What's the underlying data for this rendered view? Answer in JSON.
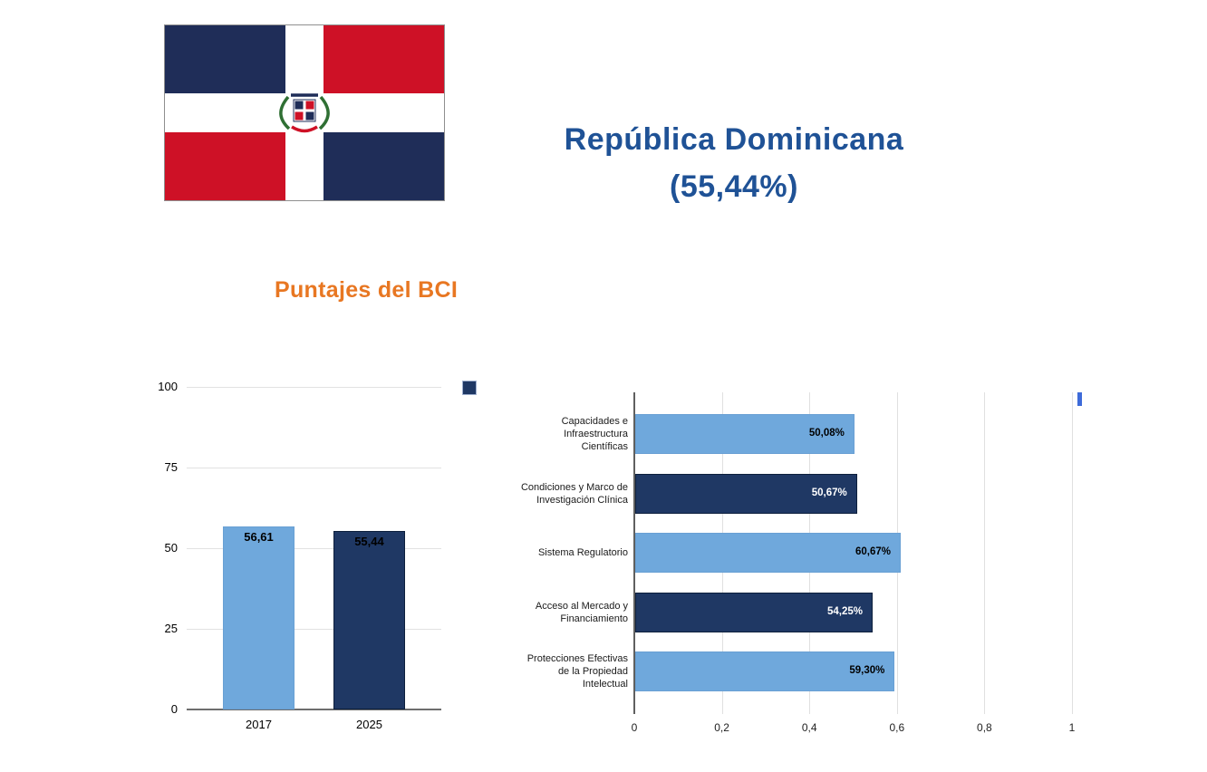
{
  "header": {
    "title_line1": "República Dominicana",
    "title_line2": "(55,44%)",
    "subtitle": "Puntajes del BCI"
  },
  "colors": {
    "title_blue": "#1F5296",
    "subtitle_orange": "#E87722",
    "bar_light_blue": "#6FA8DC",
    "bar_dark_navy": "#1F3864",
    "legend_blue": "#3E6BD9",
    "flag_navy": "#1F2D58",
    "flag_red": "#CE1126"
  },
  "chart_data": [
    {
      "type": "bar",
      "orientation": "vertical",
      "title": "",
      "categories": [
        "2017",
        "2025"
      ],
      "values": [
        56.61,
        55.44
      ],
      "value_labels": [
        "56,61",
        "55,44"
      ],
      "bar_colors": [
        "#6FA8DC",
        "#1F3864"
      ],
      "ylim": [
        0,
        100
      ],
      "ytick_values": [
        100,
        75,
        50,
        25,
        0
      ],
      "yticks": [
        "100",
        "75",
        "50",
        "25",
        "0"
      ],
      "xlabel": "",
      "ylabel": "",
      "grid": true,
      "legend": {
        "position": "top-right",
        "label": "",
        "marker_color": "#1F3864"
      }
    },
    {
      "type": "bar",
      "orientation": "horizontal",
      "title": "",
      "categories": [
        "Capacidades e Infraestructura Científicas",
        "Condiciones y Marco de Investigación Clínica",
        "Sistema Regulatorio",
        "Acceso al Mercado y Financiamiento",
        "Protecciones Efectivas de la Propiedad Intelectual"
      ],
      "category_lines": [
        [
          "Capacidades e",
          "Infraestructura",
          "Científicas"
        ],
        [
          "Condiciones y Marco de",
          "Investigación Clínica"
        ],
        [
          "Sistema Regulatorio"
        ],
        [
          "Acceso al Mercado y",
          "Financiamiento"
        ],
        [
          "Protecciones Efectivas",
          "de la Propiedad",
          "Intelectual"
        ]
      ],
      "values": [
        0.5008,
        0.5067,
        0.6067,
        0.5425,
        0.593
      ],
      "value_labels": [
        "50,08%",
        "50,67%",
        "60,67%",
        "54,25%",
        "59,30%"
      ],
      "bar_colors": [
        "#6FA8DC",
        "#1F3864",
        "#6FA8DC",
        "#1F3864",
        "#6FA8DC"
      ],
      "value_label_colors": [
        "#000000",
        "#FFFFFF",
        "#000000",
        "#FFFFFF",
        "#000000"
      ],
      "xlim": [
        0,
        1
      ],
      "xtick_values": [
        0,
        0.2,
        0.4,
        0.6,
        0.8,
        1
      ],
      "xticks": [
        "0",
        "0,2",
        "0,4",
        "0,6",
        "0,8",
        "1"
      ],
      "xlabel": "",
      "ylabel": "",
      "grid": true,
      "legend": {
        "position": "top-right",
        "label": "",
        "marker_color": "#3E6BD9"
      }
    }
  ]
}
